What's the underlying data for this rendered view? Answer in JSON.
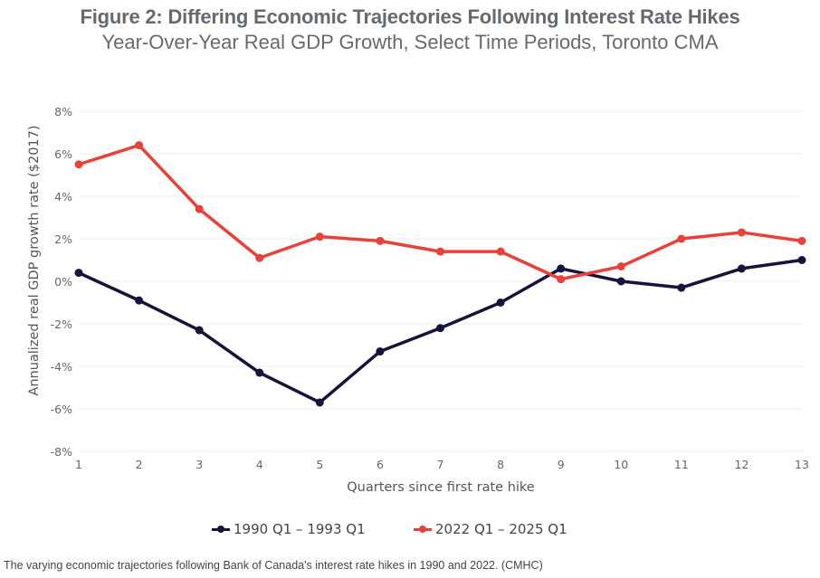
{
  "header": {
    "title": "Figure 2: Differing Economic Trajectories Following Interest Rate Hikes",
    "subtitle": "Year-Over-Year Real GDP Growth, Select Time Periods, Toronto CMA"
  },
  "caption": "The varying economic trajectories following Bank of Canada's interest rate hikes in 1990 and 2022. (CMHC)",
  "chart_data": {
    "type": "line",
    "title": "Figure 2: Differing Economic Trajectories Following Interest Rate Hikes",
    "subtitle": "Year-Over-Year Real GDP Growth, Select Time Periods, Toronto CMA",
    "xlabel": "Quarters since first rate hike",
    "ylabel": "Annualized real GDP growth rate ($2017)",
    "x": [
      1,
      2,
      3,
      4,
      5,
      6,
      7,
      8,
      9,
      10,
      11,
      12,
      13
    ],
    "x_tick_labels": [
      "1",
      "2",
      "3",
      "4",
      "5",
      "6",
      "7",
      "8",
      "9",
      "10",
      "11",
      "12",
      "13"
    ],
    "xlim": [
      1,
      13
    ],
    "ylim": [
      -8,
      8
    ],
    "y_ticks": [
      8,
      6,
      4,
      2,
      0,
      -2,
      -4,
      -6,
      -8
    ],
    "y_tick_labels": [
      "8%",
      "6%",
      "4%",
      "2%",
      "0%",
      "-2%",
      "-4%",
      "-6%",
      "-8%"
    ],
    "grid": true,
    "legend_position": "bottom-center",
    "series": [
      {
        "name": "1990 Q1 – 1993 Q1",
        "color": "#14143c",
        "values": [
          0.4,
          -0.9,
          -2.3,
          -4.3,
          -5.7,
          -3.3,
          -2.2,
          -1.0,
          0.6,
          0.0,
          -0.3,
          0.6,
          1.0
        ]
      },
      {
        "name": "2022 Q1 – 2025 Q1",
        "color": "#e8413a",
        "values": [
          5.5,
          6.4,
          3.4,
          1.1,
          2.1,
          1.9,
          1.4,
          1.4,
          0.1,
          0.7,
          2.0,
          2.3,
          1.9
        ]
      }
    ]
  }
}
